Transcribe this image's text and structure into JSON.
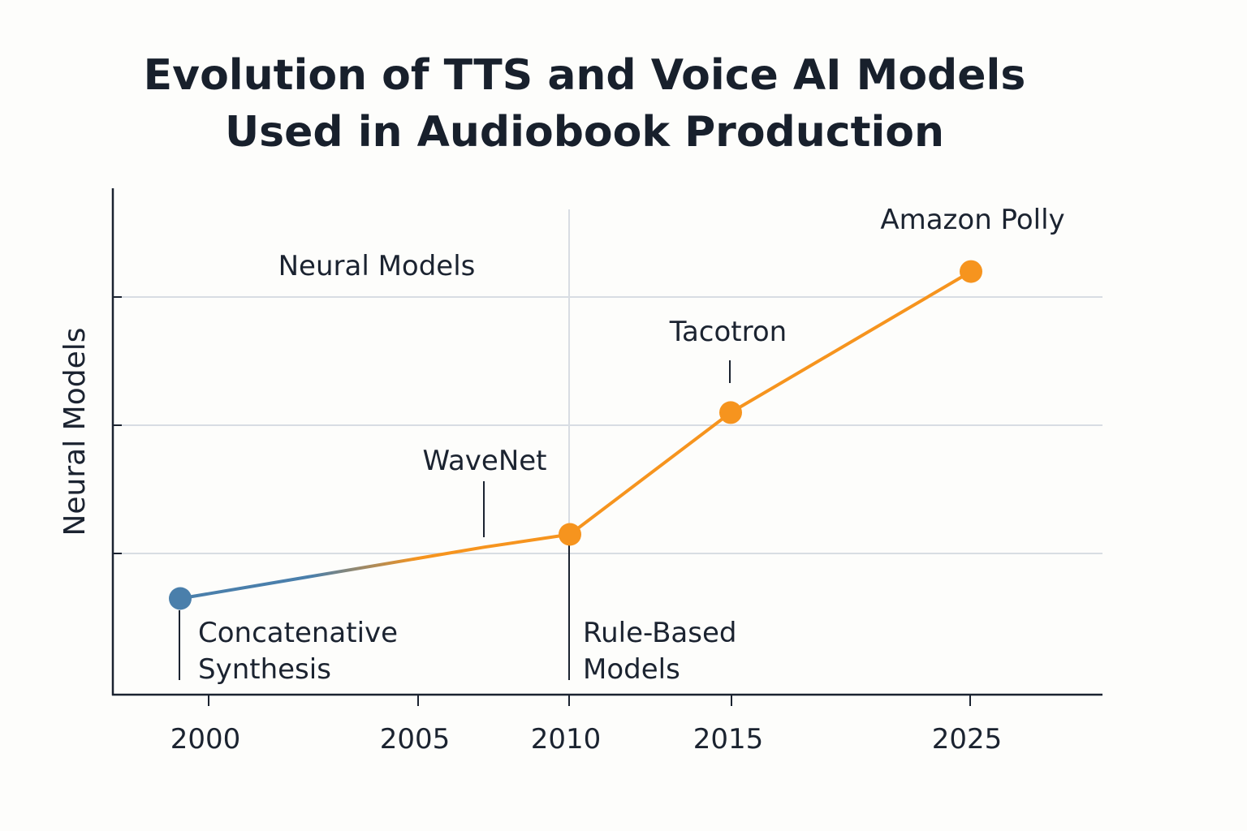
{
  "chart_data": {
    "type": "line",
    "title": "Evolution of TTS and Voice AI Models\nUsed in Audiobook Production",
    "ylabel": "Neural Models",
    "xlabel": "",
    "x_ticks": [
      "2000",
      "2005",
      "2010",
      "2015",
      "2025"
    ],
    "grid": "on",
    "region_labels": [
      "Neural Models"
    ],
    "series": [
      {
        "points": [
          {
            "x": "2000",
            "y": 0.75
          },
          {
            "x": "2007",
            "y": 1.15
          },
          {
            "x": "2010",
            "y": 1.25
          },
          {
            "x": "2015",
            "y": 2.2
          },
          {
            "x": "2025",
            "y": 3.3
          }
        ]
      }
    ],
    "annotations": [
      {
        "label": "Concatenative\nSynthesis",
        "x": "2000"
      },
      {
        "label": "WaveNet",
        "x": "2007"
      },
      {
        "label": "Rule-Based\nModels",
        "x": "2010"
      },
      {
        "label": "Tacotron",
        "x": "2015"
      },
      {
        "label": "Amazon Polly",
        "x": "2025"
      }
    ],
    "colors": {
      "early": "#4a7fab",
      "modern": "#f6941e",
      "grid": "#d8dde3",
      "axis": "#1b2330"
    }
  }
}
